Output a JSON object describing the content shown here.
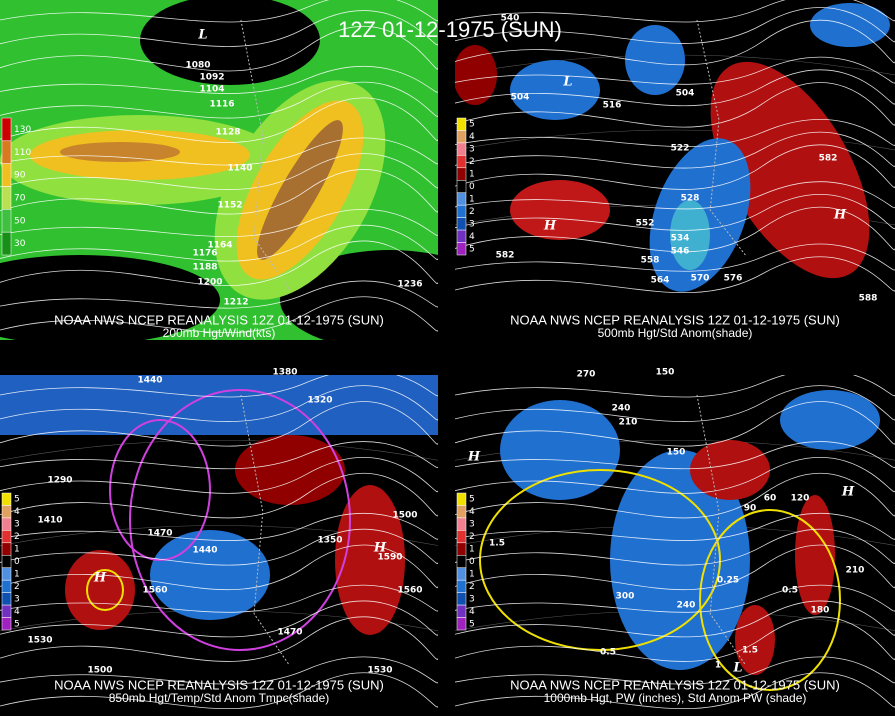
{
  "title": "12Z 01-12-1975 (SUN)",
  "panels": [
    {
      "caption": "NOAA NWS NCEP REANALYSIS 12Z 01-12-1975 (SUN)",
      "subtitle": "200mb Hgt/Wind(kts)",
      "colorbar": [
        130,
        110,
        90,
        70,
        50,
        30
      ],
      "contour_labels": [
        "1080",
        "1092",
        "1104",
        "1116",
        "1128",
        "1140",
        "1152",
        "1164",
        "1176",
        "1188",
        "1200",
        "1212",
        "1236"
      ],
      "markers": [
        "L"
      ]
    },
    {
      "caption": "NOAA NWS NCEP REANALYSIS 12Z 01-12-1975 (SUN)",
      "subtitle": "500mb Hgt/Std Anom(shade)",
      "colorbar": [
        5,
        4,
        3,
        2,
        1,
        0,
        1,
        2,
        3,
        4,
        5
      ],
      "contour_labels": [
        "540",
        "504",
        "516",
        "504",
        "522",
        "528",
        "534",
        "546",
        "552",
        "558",
        "564",
        "570",
        "576",
        "582",
        "582",
        "588"
      ],
      "markers": [
        "L",
        "H",
        "H"
      ]
    },
    {
      "caption": "NOAA NWS NCEP REANALYSIS 12Z 01-12-1975 (SUN)",
      "subtitle": "850mb Hgt/Temp/Std Anom Tmpc(shade)",
      "colorbar": [
        5,
        4,
        3,
        2,
        1,
        0,
        1,
        2,
        3,
        4,
        5
      ],
      "contour_labels": [
        "1380",
        "1440",
        "1320",
        "1290",
        "1410",
        "1470",
        "1440",
        "1350",
        "1560",
        "1500",
        "1590",
        "1530",
        "1560",
        "1470",
        "1500",
        "1530"
      ],
      "markers": [
        "H",
        "H"
      ]
    },
    {
      "caption": "NOAA NWS NCEP REANALYSIS 12Z 01-12-1975 (SUN)",
      "subtitle": "1000mb Hgt, PW (inches), Std Anom PW (shade)",
      "colorbar": [
        5,
        4,
        3,
        2,
        1,
        0,
        1,
        2,
        3,
        4,
        5
      ],
      "contour_labels": [
        "270",
        "150",
        "240",
        "210",
        "150",
        "60",
        "90",
        "120",
        "180",
        "210",
        "300",
        "240",
        "1.5",
        "0.25",
        "0.5",
        "1.5",
        "0.5",
        "1"
      ],
      "markers": [
        "H",
        "H",
        "L"
      ]
    }
  ]
}
